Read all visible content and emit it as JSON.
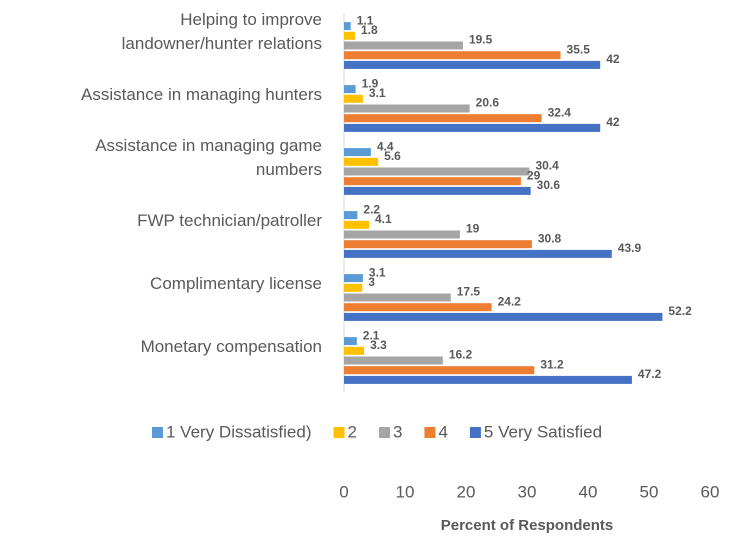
{
  "chart_data": {
    "type": "bar",
    "orientation": "horizontal",
    "x_label": "Percent of Respondents",
    "categories": [
      "Helping to improve landowner/hunter relations",
      "Assistance in managing hunters",
      "Assistance in managing game numbers",
      "FWP technician/patroller",
      "Complimentary license",
      "Monetary compensation"
    ],
    "series": [
      {
        "name": "1 Very Dissatisfied)",
        "color": "#5b9bd5",
        "values": [
          1.1,
          1.9,
          4.4,
          2.2,
          3.1,
          2.1
        ]
      },
      {
        "name": "2",
        "color": "#ffc000",
        "values": [
          1.8,
          3.1,
          5.6,
          4.1,
          3,
          3.3
        ]
      },
      {
        "name": "3",
        "color": "#a5a5a5",
        "values": [
          19.5,
          20.6,
          30.4,
          19,
          17.5,
          16.2
        ]
      },
      {
        "name": "4",
        "color": "#ed7d31",
        "values": [
          35.5,
          32.4,
          29,
          30.8,
          24.2,
          31.2
        ]
      },
      {
        "name": "5 Very Satisfied",
        "color": "#4472c4",
        "values": [
          42,
          42,
          30.6,
          43.9,
          52.2,
          47.2
        ]
      }
    ],
    "xlim": [
      0,
      60
    ],
    "xticks": [
      0,
      10,
      20,
      30,
      40,
      50,
      60
    ],
    "grid": false,
    "legend": "bottom"
  }
}
